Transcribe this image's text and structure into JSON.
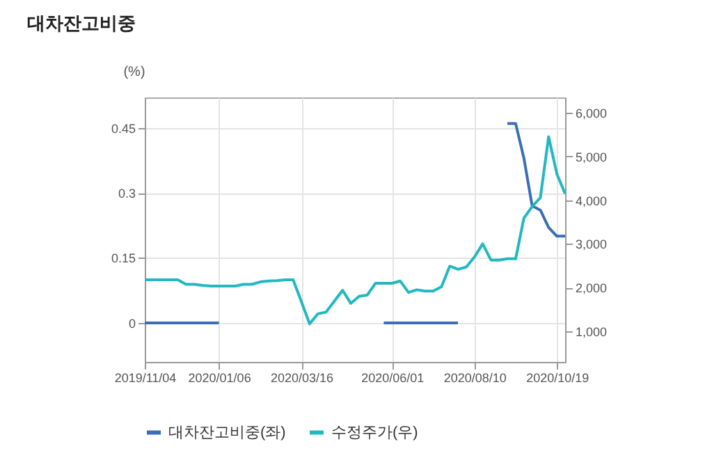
{
  "chart_data": {
    "type": "line",
    "title": "대차잔고비중",
    "ylabel": "(%)",
    "x": [
      "2019-11-04",
      "2019-11-11",
      "2019-11-18",
      "2019-11-25",
      "2019-12-02",
      "2019-12-09",
      "2019-12-16",
      "2019-12-23",
      "2019-12-30",
      "2020-01-06",
      "2020-01-13",
      "2020-01-20",
      "2020-01-27",
      "2020-02-03",
      "2020-02-10",
      "2020-02-17",
      "2020-02-24",
      "2020-03-02",
      "2020-03-09",
      "2020-03-16",
      "2020-03-23",
      "2020-03-30",
      "2020-04-06",
      "2020-04-13",
      "2020-04-20",
      "2020-04-27",
      "2020-05-04",
      "2020-05-11",
      "2020-05-18",
      "2020-05-25",
      "2020-06-01",
      "2020-06-08",
      "2020-06-15",
      "2020-06-22",
      "2020-06-29",
      "2020-07-06",
      "2020-07-13",
      "2020-07-20",
      "2020-07-27",
      "2020-08-03",
      "2020-08-10",
      "2020-08-17",
      "2020-08-24",
      "2020-08-31",
      "2020-09-07",
      "2020-09-14",
      "2020-09-21",
      "2020-09-28",
      "2020-10-05",
      "2020-10-12",
      "2020-10-19",
      "2020-10-26"
    ],
    "series": [
      {
        "name": "대차잔고비중(좌)",
        "color": "#3a6fb5",
        "values": [
          0,
          0,
          0,
          0,
          0,
          0,
          0,
          0,
          0,
          0,
          null,
          null,
          null,
          null,
          null,
          null,
          null,
          null,
          null,
          null,
          null,
          null,
          null,
          null,
          null,
          null,
          null,
          null,
          null,
          0,
          0,
          0,
          0,
          0,
          0,
          0,
          0,
          0,
          0,
          null,
          null,
          null,
          null,
          null,
          0.46,
          0.46,
          0.38,
          0.27,
          0.26,
          0.22,
          0.2,
          0.2
        ]
      },
      {
        "name": "수정주가(우)",
        "color": "#22b8c0",
        "axis": "y2",
        "values": [
          2180,
          2180,
          2180,
          2180,
          2180,
          2075,
          2075,
          2050,
          2035,
          2035,
          2035,
          2035,
          2075,
          2075,
          2130,
          2150,
          2160,
          2180,
          2180,
          1680,
          1170,
          1400,
          1440,
          1690,
          1940,
          1640,
          1800,
          1830,
          2100,
          2100,
          2100,
          2150,
          1890,
          1950,
          1920,
          1920,
          2020,
          2490,
          2420,
          2470,
          2700,
          3000,
          2630,
          2630,
          2660,
          2660,
          3590,
          3850,
          4060,
          5450,
          4600,
          4150
        ]
      }
    ],
    "xlim": [
      "2019-11-04",
      "2020-10-26"
    ],
    "xticks": [
      {
        "value": "2019-11-04",
        "label": "2019/11/04"
      },
      {
        "value": "2020-01-06",
        "label": "2020/01/06"
      },
      {
        "value": "2020-03-16",
        "label": "2020/03/16"
      },
      {
        "value": "2020-06-01",
        "label": "2020/06/01"
      },
      {
        "value": "2020-08-10",
        "label": "2020/08/10"
      },
      {
        "value": "2020-10-19",
        "label": "2020/10/19"
      }
    ],
    "ylim": [
      -0.09,
      0.52
    ],
    "yticks": [
      0,
      0.15,
      0.3,
      0.45
    ],
    "y2lim": [
      300,
      6350
    ],
    "y2ticks": [
      {
        "value": 1000,
        "label": "1,000"
      },
      {
        "value": 2000,
        "label": "2,000"
      },
      {
        "value": 3000,
        "label": "3,000"
      },
      {
        "value": 4000,
        "label": "4,000"
      },
      {
        "value": 5000,
        "label": "5,000"
      },
      {
        "value": 6000,
        "label": "6,000"
      }
    ],
    "grid": true,
    "legend": "bottom",
    "marker": "none",
    "line_style": "solid"
  }
}
